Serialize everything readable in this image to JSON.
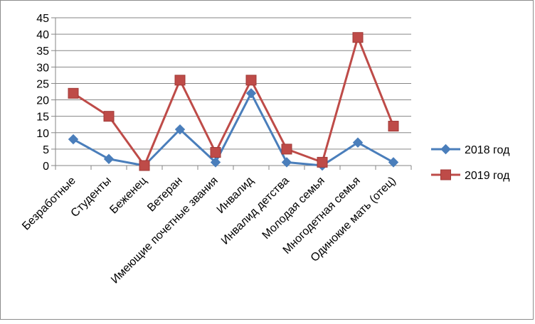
{
  "chart_data": {
    "type": "line",
    "title": "",
    "xlabel": "",
    "ylabel": "",
    "ylim": [
      0,
      45
    ],
    "y_ticks": [
      "0",
      "5",
      "10",
      "15",
      "20",
      "25",
      "30",
      "35",
      "40",
      "45"
    ],
    "grid": true,
    "legend_position": "right",
    "categories": [
      "Безработные",
      "Студенты",
      "Беженец",
      "Ветеран",
      "Имеющие почетные звания",
      "Инвалид",
      "Инвалид детства",
      "Молодая семья",
      "Многодетная семья",
      "Одинокие мать (отец)"
    ],
    "series": [
      {
        "name": "2018 год",
        "color": "#4a7ebb",
        "marker": "diamond",
        "values": [
          8,
          2,
          0,
          11,
          1,
          22,
          1,
          0,
          7,
          1
        ]
      },
      {
        "name": "2019 год",
        "color": "#be4b48",
        "marker": "square",
        "values": [
          22,
          15,
          0,
          26,
          4,
          26,
          5,
          1,
          39,
          12
        ]
      }
    ]
  }
}
